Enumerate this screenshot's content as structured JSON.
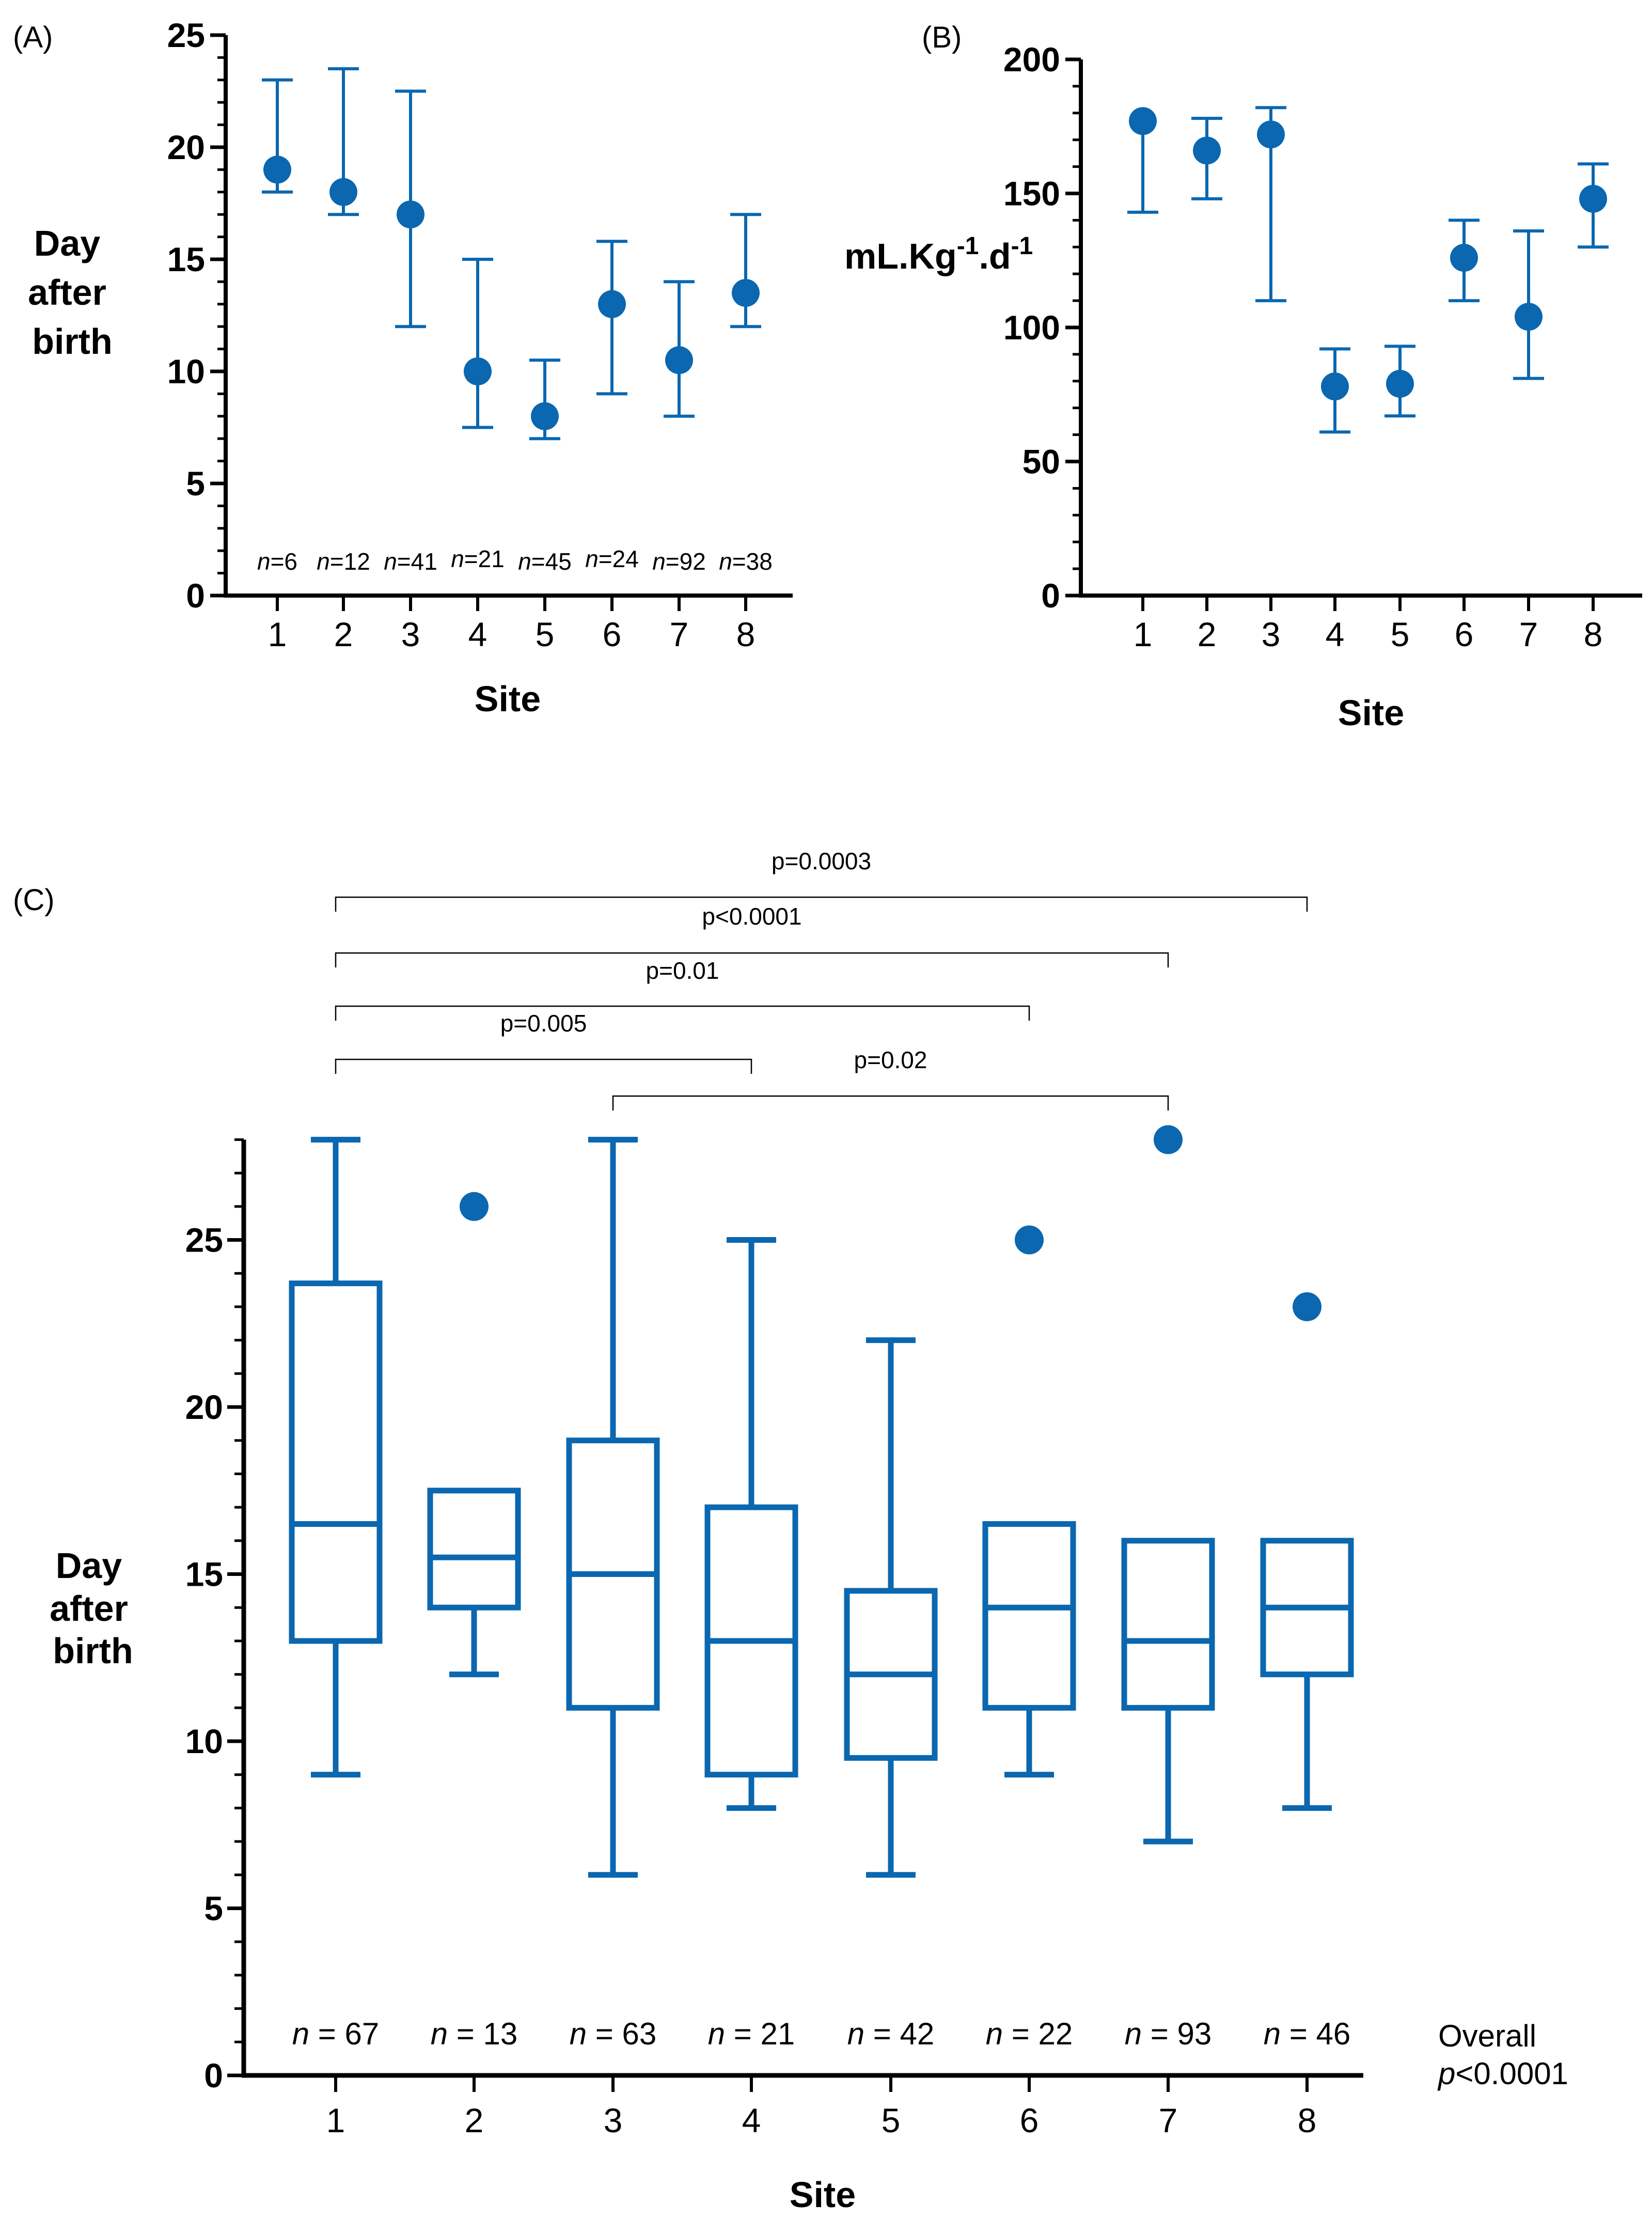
{
  "chart_data": [
    {
      "panel": "(A)",
      "type": "scatter",
      "style": "point-with-error-bars",
      "categories": [
        "1",
        "2",
        "3",
        "4",
        "5",
        "6",
        "7",
        "8"
      ],
      "values": [
        19,
        18,
        17,
        10,
        8,
        13,
        10.5,
        13.5
      ],
      "error_low": [
        18,
        17,
        12,
        7.5,
        7,
        9,
        8,
        12
      ],
      "error_high": [
        23,
        23.5,
        22.5,
        15,
        10.5,
        15.8,
        14,
        17
      ],
      "n_labels": [
        {
          "prefix": "n",
          "text": "=6"
        },
        {
          "prefix": "n",
          "text": "=12"
        },
        {
          "prefix": "n",
          "text": "=41"
        },
        {
          "prefix": "n",
          "text": "=21"
        },
        {
          "prefix": "n",
          "text": "=45"
        },
        {
          "prefix": "n",
          "text": "=24"
        },
        {
          "prefix": "n",
          "text": "=92"
        },
        {
          "prefix": "n",
          "text": "=38"
        }
      ],
      "xlabel": "Site",
      "ylabel": [
        "Day",
        "after",
        "birth"
      ],
      "ylim": [
        0,
        25
      ],
      "yticks": [
        "0",
        "5",
        "10",
        "15",
        "20",
        "25"
      ],
      "color": "#0a67b0"
    },
    {
      "panel": "(B)",
      "type": "scatter",
      "style": "point-with-error-bars",
      "categories": [
        "1",
        "2",
        "3",
        "4",
        "5",
        "6",
        "7",
        "8"
      ],
      "values": [
        177,
        166,
        172,
        78,
        79,
        126,
        104,
        148
      ],
      "error_low": [
        143,
        148,
        110,
        61,
        67,
        110,
        81,
        130
      ],
      "error_high": [
        177,
        178,
        182,
        92,
        93,
        140,
        136,
        161
      ],
      "xlabel": "Site",
      "ylabel": {
        "base": "mL.Kg",
        "sup1": "-1",
        "mid": ".d",
        "sup2": "-1"
      },
      "ylim": [
        0,
        200
      ],
      "yticks": [
        "0",
        "50",
        "100",
        "150",
        "200"
      ],
      "color": "#0a67b0"
    },
    {
      "panel": "(C)",
      "type": "box",
      "categories": [
        "1",
        "2",
        "3",
        "4",
        "5",
        "6",
        "7",
        "8"
      ],
      "boxes": [
        {
          "min": 9,
          "q1": 13,
          "median": 16.5,
          "q3": 23.7,
          "max": 28,
          "outliers": []
        },
        {
          "min": 12,
          "q1": 14,
          "median": 15.5,
          "q3": 17.5,
          "max": 17.5,
          "outliers": [
            26
          ]
        },
        {
          "min": 6,
          "q1": 11,
          "median": 15,
          "q3": 19,
          "max": 28,
          "outliers": []
        },
        {
          "min": 8,
          "q1": 9,
          "median": 13,
          "q3": 17,
          "max": 25,
          "outliers": []
        },
        {
          "min": 6,
          "q1": 9.5,
          "median": 12,
          "q3": 14.5,
          "max": 22,
          "outliers": []
        },
        {
          "min": 9,
          "q1": 11,
          "median": 14,
          "q3": 16.5,
          "max": 16.5,
          "outliers": [
            25
          ]
        },
        {
          "min": 7,
          "q1": 11,
          "median": 13,
          "q3": 16,
          "max": 16,
          "outliers": [
            28
          ]
        },
        {
          "min": 8,
          "q1": 12,
          "median": 14,
          "q3": 16,
          "max": 16,
          "outliers": [
            23
          ]
        }
      ],
      "n_labels": [
        {
          "prefix": "n",
          "text": " = 67"
        },
        {
          "prefix": "n",
          "text": " = 13"
        },
        {
          "prefix": "n",
          "text": " = 63"
        },
        {
          "prefix": "n",
          "text": " = 21"
        },
        {
          "prefix": "n",
          "text": " = 42"
        },
        {
          "prefix": "n",
          "text": " = 22"
        },
        {
          "prefix": "n",
          "text": " = 93"
        },
        {
          "prefix": "n",
          "text": " = 46"
        }
      ],
      "comparisons": [
        {
          "from": "1",
          "to": "8",
          "label": "p=0.0003"
        },
        {
          "from": "1",
          "to": "7",
          "label": "p<0.0001"
        },
        {
          "from": "1",
          "to": "6",
          "label": "p=0.01"
        },
        {
          "from": "1",
          "to": "4",
          "label": "p=0.005"
        },
        {
          "from": "3",
          "to": "7",
          "label": "p=0.02"
        }
      ],
      "overall": {
        "line1": "Overall",
        "prefix": "p",
        "text": "<0.0001"
      },
      "xlabel": "Site",
      "ylabel": [
        "Day",
        "after",
        "birth"
      ],
      "ylim": [
        0,
        28
      ],
      "yticks": [
        "0",
        "5",
        "10",
        "15",
        "20",
        "25"
      ],
      "color": "#0a67b0"
    }
  ]
}
